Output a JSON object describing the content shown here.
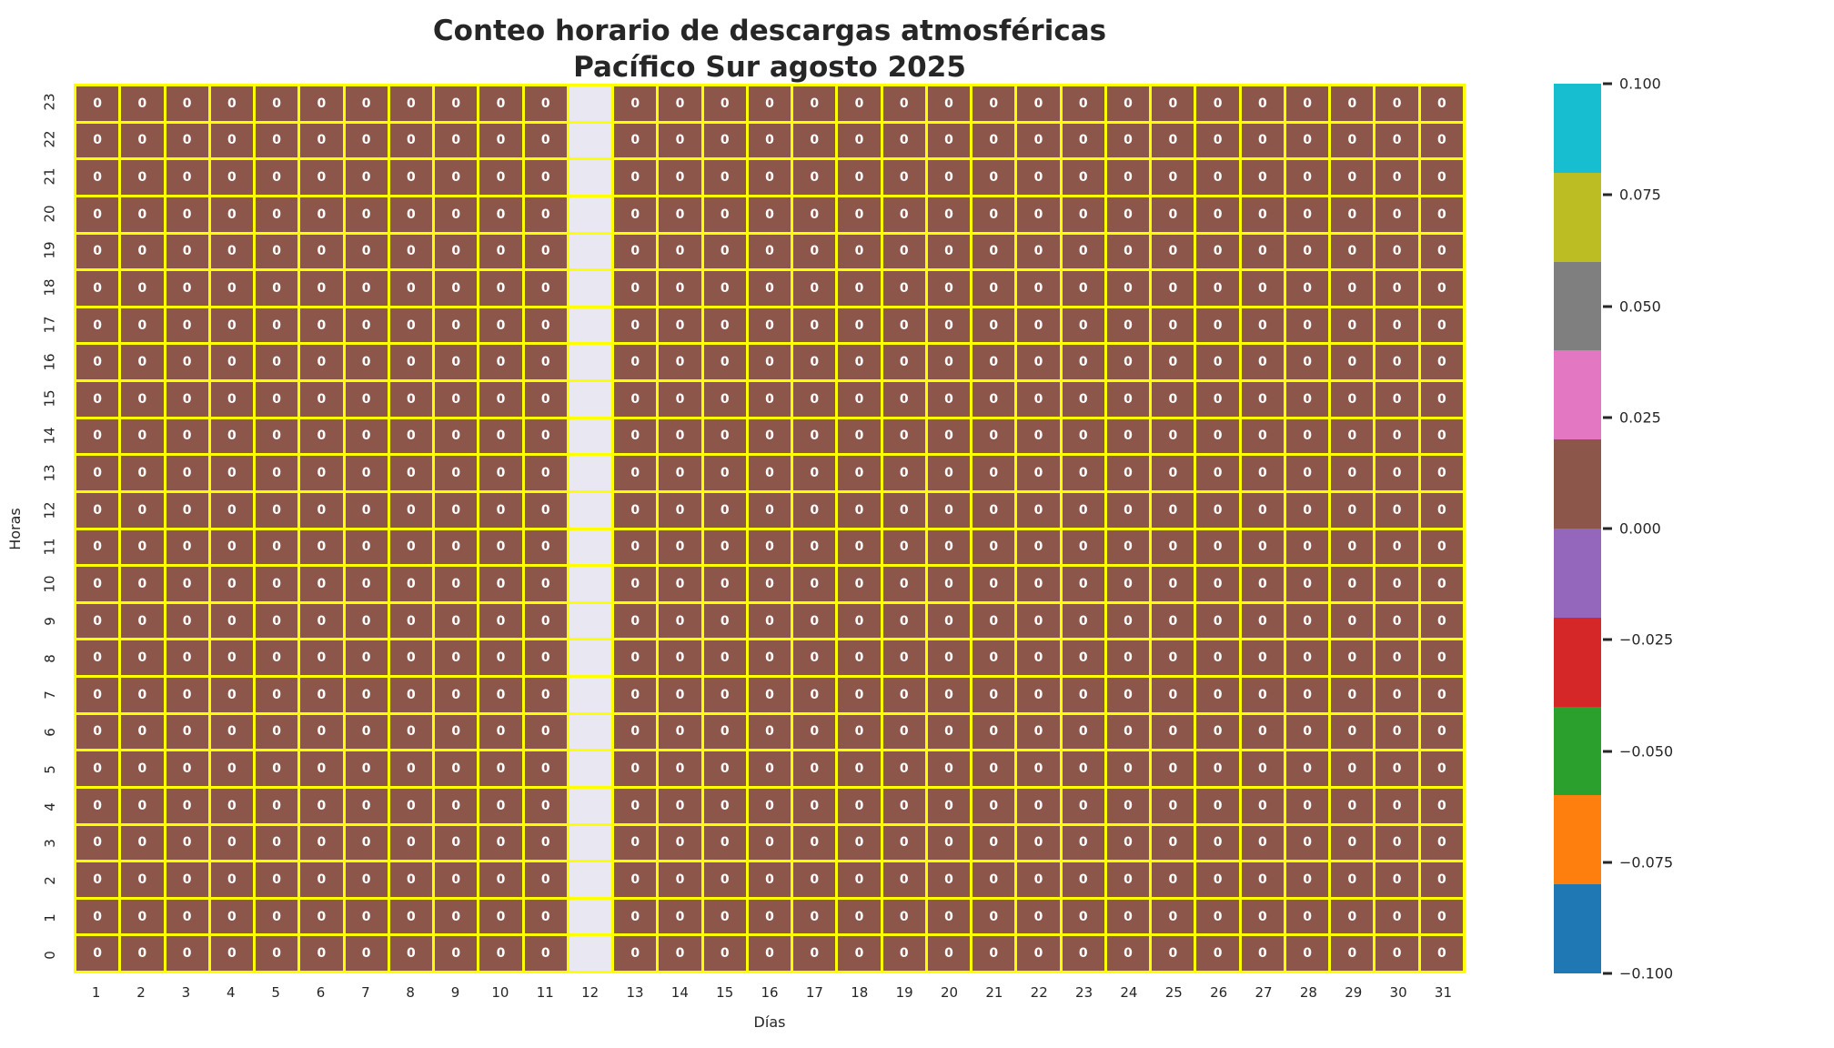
{
  "chart_data": {
    "type": "heatmap",
    "title": [
      "Conteo horario de descargas atmosféricas",
      "Pacífico Sur agosto 2025"
    ],
    "xlabel": "Días",
    "ylabel": "Horas",
    "x_tick_labels": [
      "1",
      "2",
      "3",
      "4",
      "5",
      "6",
      "7",
      "8",
      "9",
      "10",
      "11",
      "12",
      "13",
      "14",
      "15",
      "16",
      "17",
      "18",
      "19",
      "20",
      "21",
      "22",
      "23",
      "24",
      "25",
      "26",
      "27",
      "28",
      "29",
      "30",
      "31"
    ],
    "y_tick_labels_top_to_bottom": [
      "23",
      "22",
      "21",
      "20",
      "19",
      "18",
      "17",
      "16",
      "15",
      "14",
      "13",
      "12",
      "11",
      "10",
      "9",
      "8",
      "7",
      "6",
      "5",
      "4",
      "3",
      "2",
      "1",
      "0"
    ],
    "cell_value_label": "0",
    "uniform_value": 0,
    "missing_x": [
      "12"
    ],
    "values_note": "Every cell shows 0 for all 24 hours (rows 23 down to 0) across all days 1-31, except day 12 which is a blank column with no data.",
    "grid_on": false,
    "legend_position": "right-colorbar",
    "colors": {
      "cell": "#8c564b",
      "missing_cell": "#e9e8f2",
      "grid_lines": "#ffff00",
      "annotation_text": "#ffffff",
      "figure_background": "#ffffff",
      "tick_text": "#262626"
    },
    "colorbar": {
      "vmin": -0.1,
      "vmax": 0.1,
      "tick_labels_top_to_bottom": [
        "0.100",
        "0.075",
        "0.050",
        "0.025",
        "0.000",
        "−0.025",
        "−0.050",
        "−0.075",
        "−0.100"
      ],
      "band_colors_top_to_bottom": [
        "#17becf",
        "#bcbd22",
        "#7f7f7f",
        "#e377c2",
        "#8c564b",
        "#9467bd",
        "#d62728",
        "#2ca02c",
        "#ff7f0e",
        "#1f77b4"
      ]
    }
  }
}
